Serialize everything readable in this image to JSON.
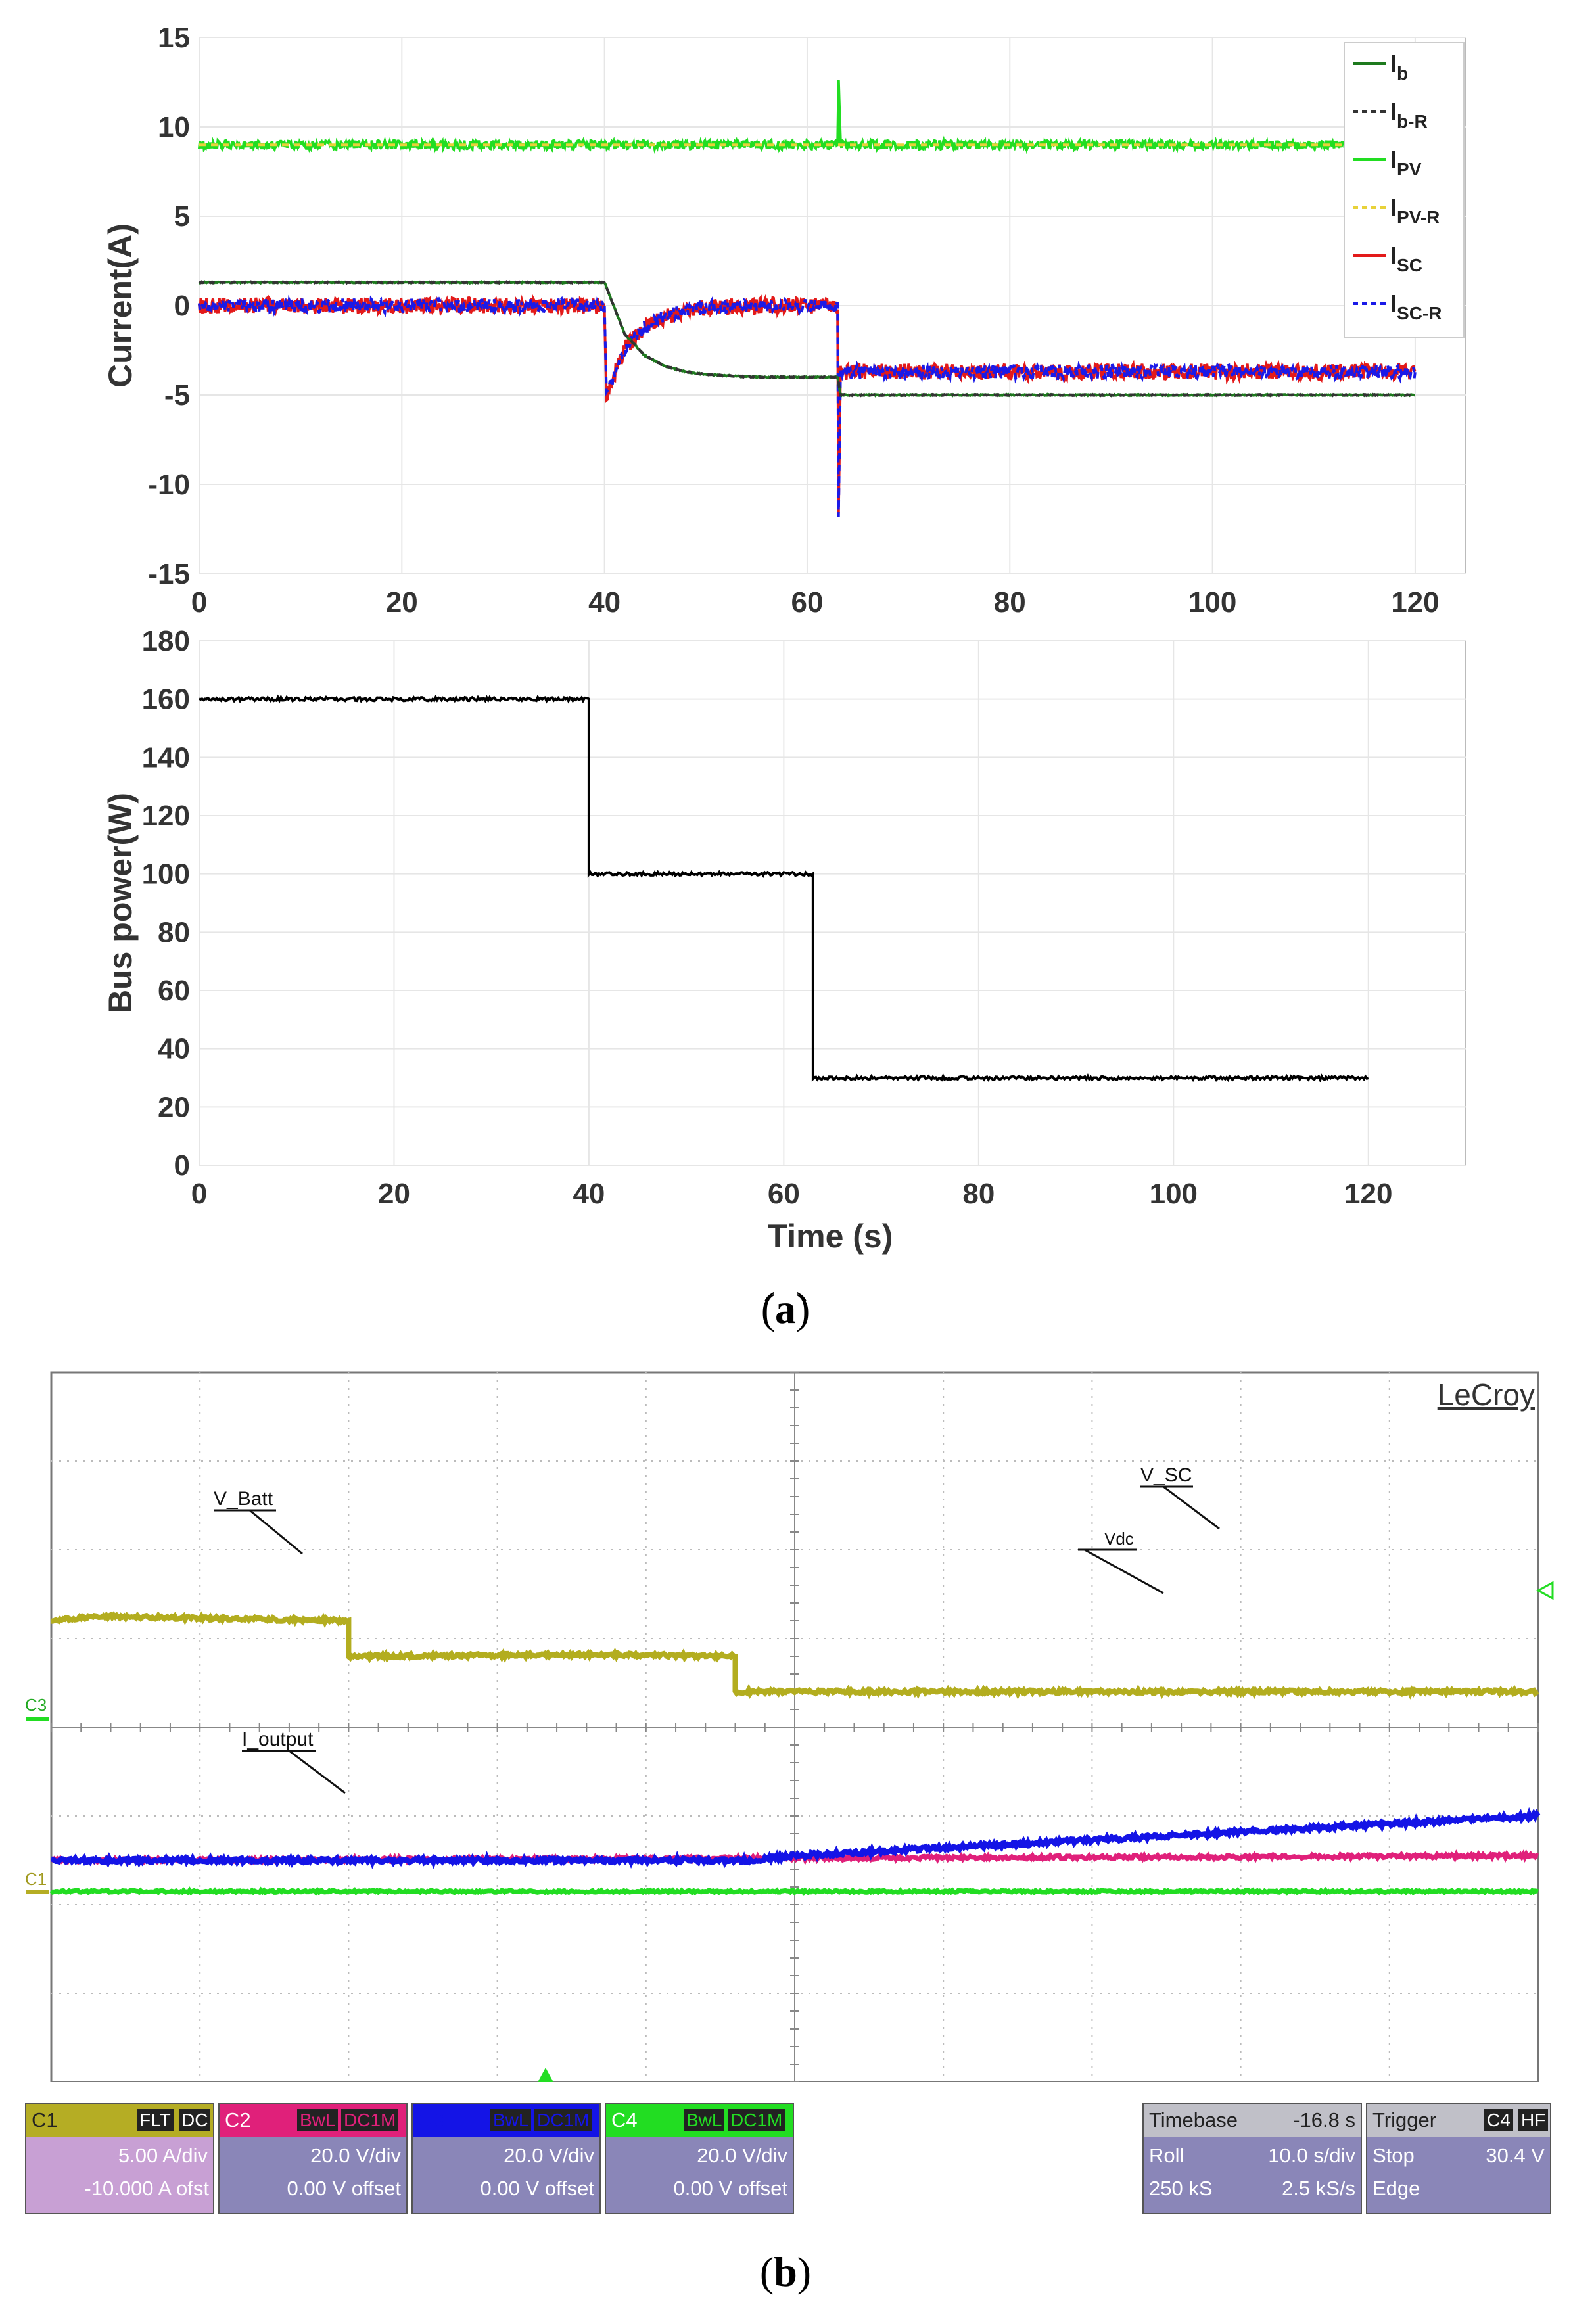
{
  "captions": {
    "a": "a",
    "b": "b"
  },
  "chart_data": [
    {
      "type": "line",
      "ylabel": "Current(A)",
      "xlabel": "",
      "xlim": [
        0,
        125
      ],
      "ylim": [
        -15,
        15
      ],
      "xticks": [
        "0",
        "20",
        "40",
        "60",
        "80",
        "100",
        "120"
      ],
      "yticks": [
        "15",
        "10",
        "5",
        "0",
        "-5",
        "-10",
        "-15"
      ],
      "legend_position": "top-right",
      "grid": true,
      "series": [
        {
          "name": "I_b",
          "label": "I",
          "sub": "b",
          "color": "#1e7a1e",
          "style": "solid",
          "x": [
            0,
            40,
            42,
            44,
            46,
            48,
            50,
            55,
            63,
            63.3,
            120
          ],
          "y": [
            1.3,
            1.3,
            -1.6,
            -2.8,
            -3.4,
            -3.7,
            -3.85,
            -4.0,
            -4.0,
            -5.0,
            -5.0
          ]
        },
        {
          "name": "I_b-R",
          "label": "I",
          "sub": "b-R",
          "color": "#333333",
          "style": "dashed",
          "x": [
            0,
            40,
            42,
            44,
            46,
            48,
            50,
            55,
            63,
            63.3,
            120
          ],
          "y": [
            1.3,
            1.3,
            -1.6,
            -2.8,
            -3.4,
            -3.7,
            -3.85,
            -4.0,
            -4.0,
            -5.0,
            -5.0
          ]
        },
        {
          "name": "I_PV",
          "label": "I",
          "sub": "PV",
          "color": "#22dd22",
          "style": "solid",
          "x": [
            0,
            40,
            63,
            63.1,
            63.3,
            120
          ],
          "y": [
            9.0,
            9.0,
            9.0,
            12.7,
            9.0,
            9.0
          ]
        },
        {
          "name": "I_PV-R",
          "label": "I",
          "sub": "PV-R",
          "color": "#e8d23a",
          "style": "dashed",
          "x": [
            0,
            120
          ],
          "y": [
            9.0,
            9.0
          ]
        },
        {
          "name": "I_SC",
          "label": "I",
          "sub": "SC",
          "color": "#e31a1a",
          "style": "solid",
          "x": [
            0,
            40,
            40.2,
            42,
            44,
            46,
            48,
            50,
            55,
            63,
            63.1,
            63.3,
            120
          ],
          "y": [
            0,
            0,
            -5.0,
            -2.4,
            -1.2,
            -0.6,
            -0.3,
            -0.1,
            0,
            0,
            -11.5,
            -3.7,
            -3.7
          ]
        },
        {
          "name": "I_SC-R",
          "label": "I",
          "sub": "SC-R",
          "color": "#1a1ae8",
          "style": "dashed",
          "x": [
            0,
            40,
            40.2,
            42,
            44,
            46,
            48,
            50,
            55,
            63,
            63.1,
            63.3,
            120
          ],
          "y": [
            0,
            0,
            -5.0,
            -2.4,
            -1.2,
            -0.6,
            -0.3,
            -0.1,
            0,
            0,
            -11.5,
            -3.7,
            -3.7
          ]
        }
      ]
    },
    {
      "type": "line",
      "ylabel": "Bus power(W)",
      "xlabel": "Time (s)",
      "xlim": [
        0,
        130
      ],
      "ylim": [
        0,
        180
      ],
      "xticks": [
        "0",
        "20",
        "40",
        "60",
        "80",
        "100",
        "120"
      ],
      "yticks": [
        "180",
        "160",
        "140",
        "120",
        "100",
        "80",
        "60",
        "40",
        "20",
        "0"
      ],
      "grid": true,
      "series": [
        {
          "name": "",
          "color": "#000000",
          "x": [
            0,
            40,
            40,
            63,
            63,
            120
          ],
          "y": [
            160,
            160,
            100,
            100,
            30,
            30
          ]
        }
      ]
    },
    {
      "type": "line",
      "brand": "LeCroy",
      "annotations": [
        "V_Batt",
        "V_SC",
        "Vdc",
        "I_output"
      ],
      "channel_markers": [
        "C3",
        "C1"
      ],
      "x_divisions": 10,
      "y_divisions": 8,
      "series": [
        {
          "name": "V_SC",
          "color": "#1414e6",
          "x": [
            0,
            4.7,
            5,
            10
          ],
          "y": [
            2.5,
            2.5,
            2.55,
            3.0
          ]
        },
        {
          "name": "V_Batt",
          "color": "#e0207a",
          "x": [
            0,
            10
          ],
          "y": [
            2.5,
            2.55
          ]
        },
        {
          "name": "Vdc",
          "color": "#22dd22",
          "x": [
            0,
            10
          ],
          "y": [
            2.15,
            2.15
          ]
        },
        {
          "name": "I_output",
          "color": "#b3ad1f",
          "x": [
            0,
            0.3,
            2.0,
            2.0,
            3.7,
            4.6,
            4.6,
            10
          ],
          "y": [
            5.2,
            5.25,
            5.2,
            4.8,
            4.82,
            4.8,
            4.4,
            4.4
          ]
        }
      ]
    }
  ],
  "scope_panels": {
    "c1": {
      "ch": "C1",
      "tag1": "FLT",
      "tag2": "DC",
      "scale": "5.00 A/div",
      "offset": "-10.000 A ofst"
    },
    "c2": {
      "ch": "C2",
      "tag1": "BwL",
      "tag2": "DC1M",
      "scale": "20.0 V/div",
      "offset": "0.00 V offset"
    },
    "c3": {
      "ch": "C3",
      "tag1": "BwL",
      "tag2": "DC1M",
      "scale": "20.0 V/div",
      "offset": "0.00 V offset"
    },
    "c4": {
      "ch": "C4",
      "tag1": "BwL",
      "tag2": "DC1M",
      "scale": "20.0 V/div",
      "offset": "0.00 V offset"
    },
    "timebase": {
      "title": "Timebase",
      "value": "-16.8 s",
      "mode": "Roll",
      "per_div": "10.0 s/div",
      "samples": "250 kS",
      "rate": "2.5 kS/s"
    },
    "trigger": {
      "title": "Trigger",
      "ch": "C4",
      "tag": "HF",
      "mode": "Stop",
      "level": "30.4 V",
      "type": "Edge"
    }
  },
  "colors": {
    "c1": "#b5ad24",
    "c2": "#e0207a",
    "c3": "#1414e6",
    "c4": "#22dd22",
    "panel_bg": "#8a86b8"
  }
}
